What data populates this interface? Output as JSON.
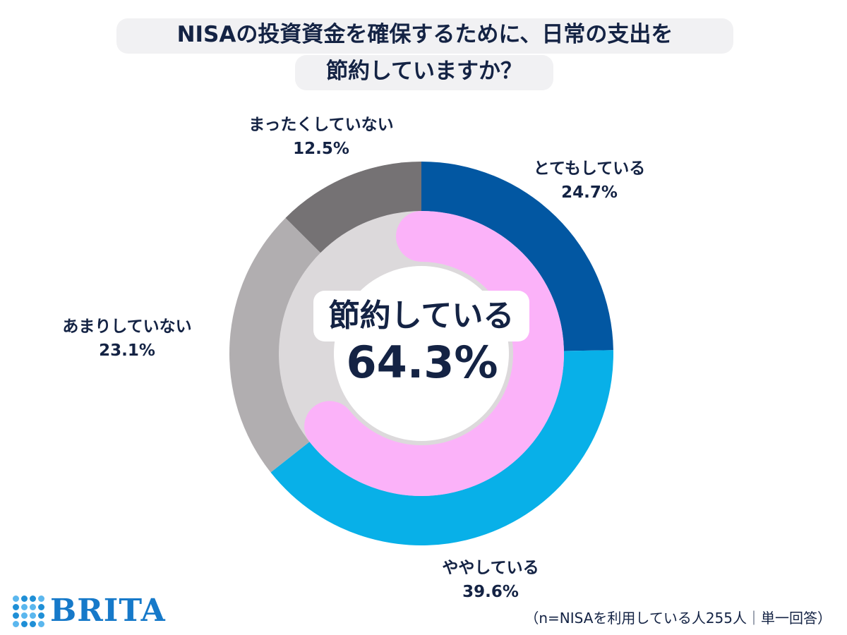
{
  "title": {
    "line1": "NISAの投資資金を確保するために、日常の支出を",
    "line2": "節約していますか？"
  },
  "center": {
    "label": "節約している",
    "value": "64.3%"
  },
  "chart_data": {
    "type": "pie",
    "variant": "donut",
    "start": "top, clockwise",
    "series": [
      {
        "label": "とてもしている",
        "value": 24.7,
        "display": "24.7%",
        "color": "#0257a2"
      },
      {
        "label": "ややしている",
        "value": 39.6,
        "display": "39.6%",
        "color": "#08b0e8"
      },
      {
        "label": "あまりしていない",
        "value": 23.1,
        "display": "23.1%",
        "color": "#b1aeb0"
      },
      {
        "label": "まったくしていない",
        "value": 12.5,
        "display": "12.5%",
        "color": "#757274"
      }
    ],
    "inner_ring": {
      "value": 64.3,
      "color": "#fbb2f9",
      "track_color": "#dcd9db"
    }
  },
  "footnote": "（n=NISAを利用している人255人｜単一回答）",
  "logo": "BRITA"
}
